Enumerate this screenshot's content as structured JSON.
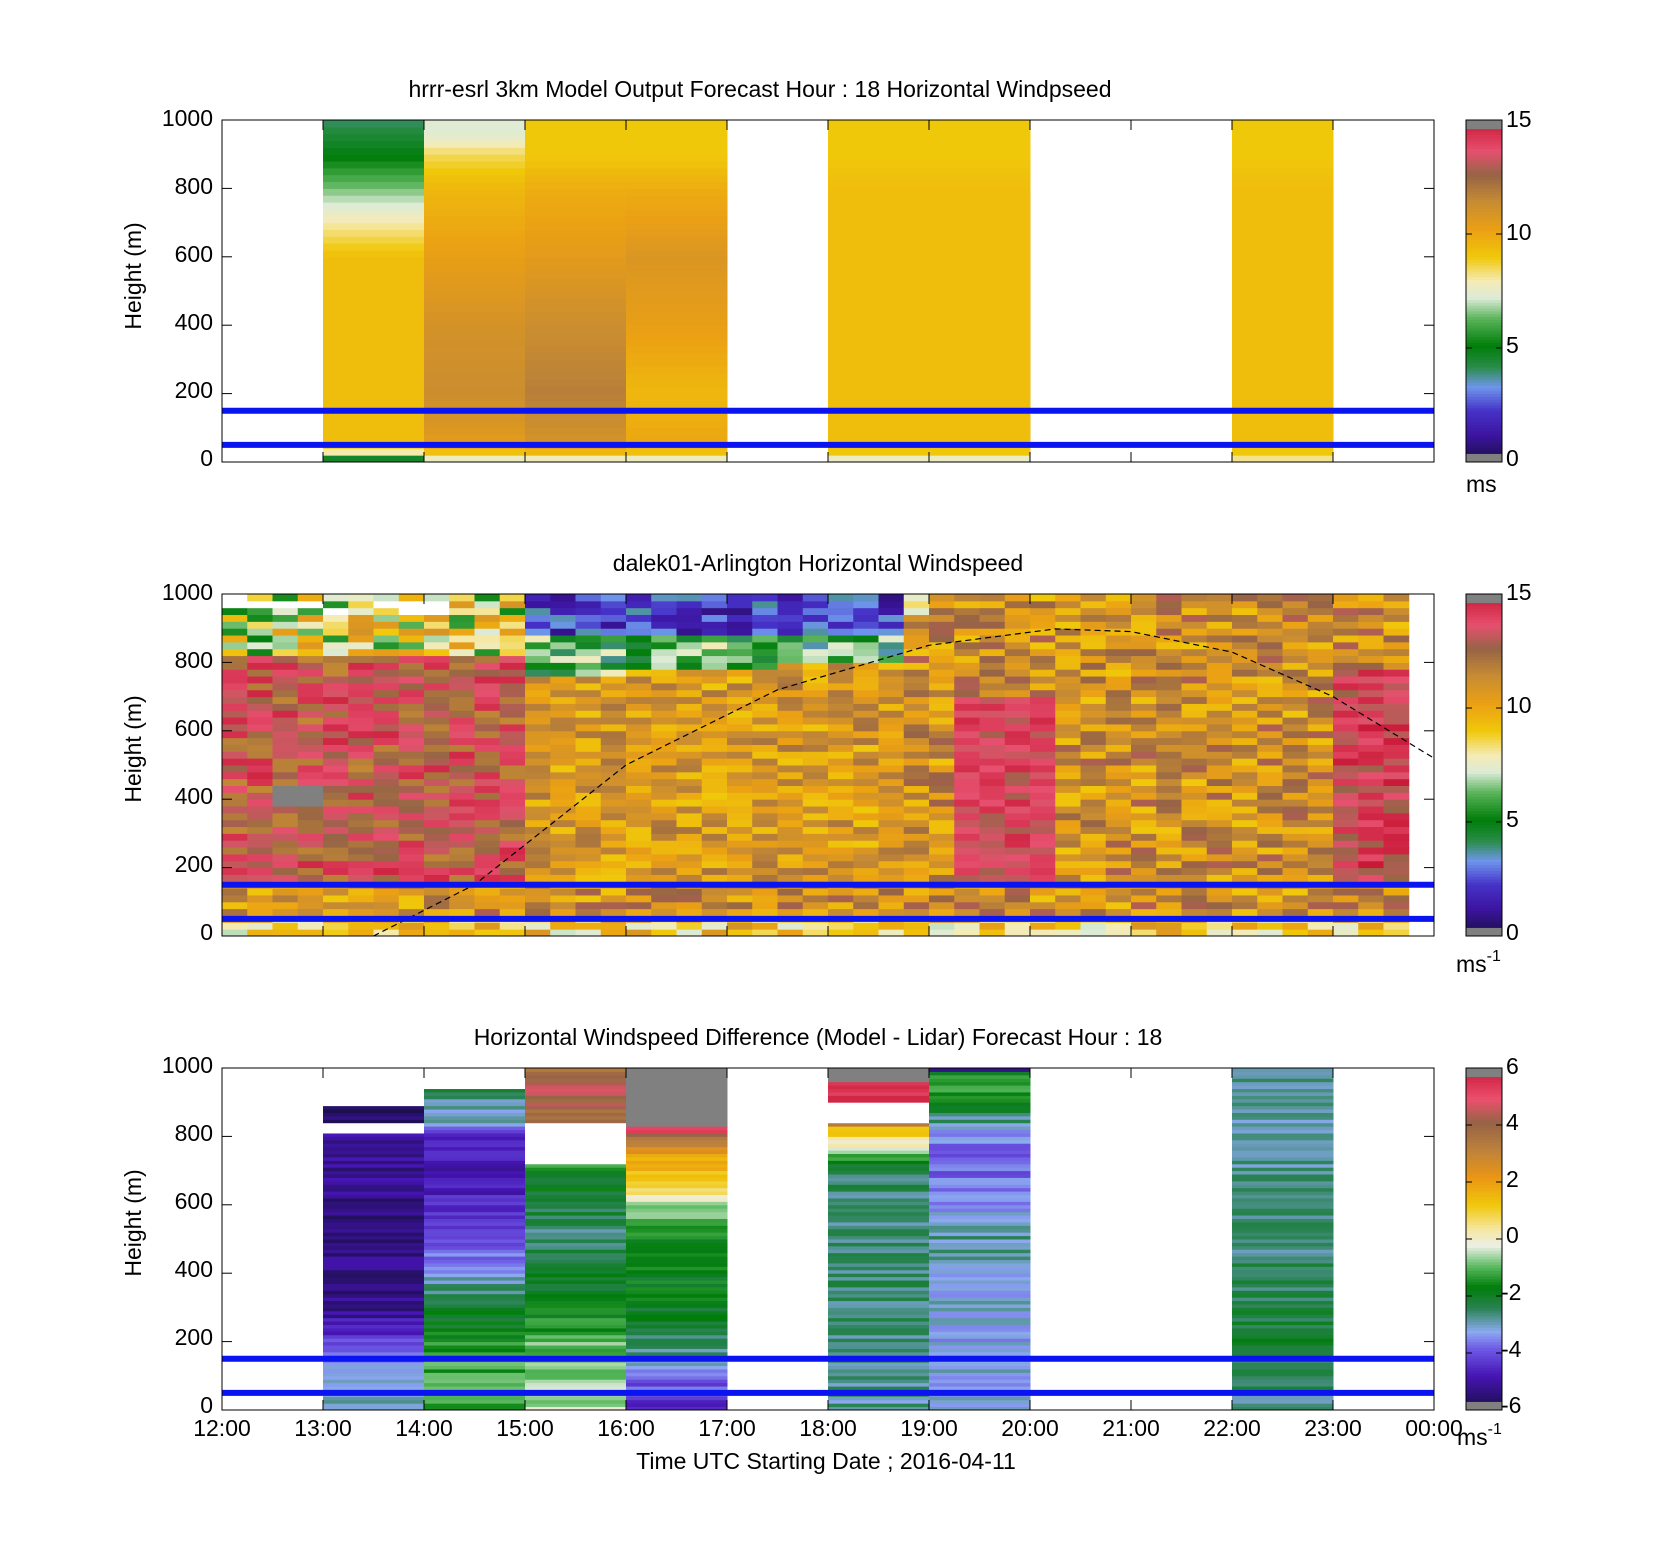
{
  "x_axis": {
    "ticks": [
      "12:00",
      "13:00",
      "14:00",
      "15:00",
      "16:00",
      "17:00",
      "18:00",
      "19:00",
      "20:00",
      "21:00",
      "22:00",
      "23:00",
      "00:00"
    ],
    "label": "Time UTC  Starting Date ; 2016-04-11"
  },
  "chart_data": [
    {
      "type": "heatmap",
      "title": "hrrr-esrl 3km Model Output   Forecast Hour : 18 Horizontal Windpseed",
      "ylabel": "Height (m)",
      "ylim": [
        0,
        1000
      ],
      "yticks": [
        "0",
        "200",
        "400",
        "600",
        "800",
        "1000"
      ],
      "colorbar": {
        "ticks": [
          "0",
          "5",
          "10",
          "15"
        ],
        "range": [
          0,
          15
        ],
        "unit": "ms",
        "unit_sup": ""
      },
      "reference_lines_m": [
        150,
        50
      ],
      "columns": [
        {
          "start_hour": 1,
          "profile": [
            [
              0,
              3
            ],
            [
              30,
              8
            ],
            [
              60,
              9.3
            ],
            [
              100,
              9.3
            ],
            [
              600,
              9.3
            ],
            [
              700,
              8
            ],
            [
              800,
              6.5
            ],
            [
              900,
              5
            ],
            [
              1000,
              4
            ]
          ]
        },
        {
          "start_hour": 2,
          "profile": [
            [
              0,
              7
            ],
            [
              30,
              9.2
            ],
            [
              60,
              10.5
            ],
            [
              200,
              11.3
            ],
            [
              400,
              11
            ],
            [
              600,
              10.3
            ],
            [
              800,
              9.5
            ],
            [
              900,
              8.5
            ],
            [
              960,
              7.3
            ]
          ]
        },
        {
          "start_hour": 3,
          "profile": [
            [
              0,
              7
            ],
            [
              30,
              9.5
            ],
            [
              60,
              11
            ],
            [
              200,
              11.8
            ],
            [
              400,
              11.3
            ],
            [
              600,
              10.5
            ],
            [
              800,
              9.8
            ],
            [
              900,
              9
            ]
          ]
        },
        {
          "start_hour": 4,
          "profile": [
            [
              0,
              7
            ],
            [
              30,
              9.2
            ],
            [
              60,
              10
            ],
            [
              200,
              9.5
            ],
            [
              400,
              10.3
            ],
            [
              600,
              10.8
            ],
            [
              800,
              9.8
            ],
            [
              900,
              9
            ]
          ]
        },
        {
          "start_hour": 6,
          "profile": [
            [
              0,
              7
            ],
            [
              30,
              9
            ],
            [
              60,
              9.3
            ],
            [
              400,
              9.3
            ],
            [
              800,
              9.3
            ],
            [
              900,
              9
            ]
          ]
        },
        {
          "start_hour": 7,
          "profile": [
            [
              0,
              7
            ],
            [
              30,
              9
            ],
            [
              60,
              9.3
            ],
            [
              400,
              9.3
            ],
            [
              800,
              9.3
            ],
            [
              900,
              9
            ]
          ]
        },
        {
          "start_hour": 10,
          "profile": [
            [
              0,
              7.8
            ],
            [
              30,
              9
            ],
            [
              60,
              9.3
            ],
            [
              400,
              9.3
            ],
            [
              800,
              9.3
            ],
            [
              900,
              9
            ]
          ]
        }
      ]
    },
    {
      "type": "heatmap",
      "title": "dalek01-Arlington  Horizontal Windspeed",
      "ylabel": "Height (m)",
      "ylim": [
        0,
        1000
      ],
      "yticks": [
        "0",
        "200",
        "400",
        "600",
        "800",
        "1000"
      ],
      "colorbar": {
        "ticks": [
          "0",
          "5",
          "10",
          "15"
        ],
        "range": [
          0,
          15
        ],
        "unit": "ms",
        "unit_sup": "-1"
      },
      "reference_lines_m": [
        150,
        50
      ],
      "dashed_curve": {
        "x_hours": [
          1.5,
          2.5,
          4,
          5.5,
          7,
          8.25,
          9,
          10,
          11,
          12
        ],
        "y_m": [
          0,
          150,
          500,
          720,
          850,
          898,
          890,
          830,
          700,
          520
        ]
      },
      "column_hours": 0.25,
      "time_range_hours": [
        0,
        11.75
      ],
      "regions": [
        {
          "name": "morning-jet",
          "hours": [
            0,
            3
          ],
          "core_speed": 13.5,
          "core_top_m": 820
        },
        {
          "name": "upper-slow-layer",
          "hours": [
            3,
            6.6
          ],
          "speed": 2,
          "bottom_m": 800
        },
        {
          "name": "evening-jet",
          "hours": [
            11,
            11.75
          ],
          "core_speed": 14,
          "core_top_m": 700
        }
      ]
    },
    {
      "type": "heatmap",
      "title": "Horizontal Windspeed Difference (Model - Lidar) Forecast Hour : 18",
      "ylabel": "Height (m)",
      "ylim": [
        0,
        1000
      ],
      "yticks": [
        "0",
        "200",
        "400",
        "600",
        "800",
        "1000"
      ],
      "colorbar": {
        "ticks": [
          "-6",
          "-4",
          "-2",
          "0",
          "2",
          "4",
          "6"
        ],
        "range": [
          -6,
          6
        ],
        "unit": "ms",
        "unit_sup": "-1"
      },
      "reference_lines_m": [
        150,
        50
      ],
      "columns": [
        {
          "start_hour": 1,
          "profile": [
            [
              0,
              -2.8
            ],
            [
              60,
              -2.8
            ],
            [
              180,
              -3.6
            ],
            [
              220,
              -4.4
            ],
            [
              300,
              -5.3
            ],
            [
              600,
              -5.3
            ],
            [
              800,
              -5.1
            ],
            [
              880,
              -5.8
            ]
          ],
          "gaps_m": [
            [
              810,
              840
            ]
          ]
        },
        {
          "start_hour": 2,
          "profile": [
            [
              0,
              -1.2
            ],
            [
              150,
              -1.2
            ],
            [
              300,
              -2.2
            ],
            [
              420,
              -3.3
            ],
            [
              500,
              -4
            ],
            [
              560,
              -4.6
            ],
            [
              700,
              -4.7
            ],
            [
              800,
              -4.5
            ],
            [
              850,
              -3
            ],
            [
              930,
              -2.5
            ]
          ]
        },
        {
          "start_hour": 3,
          "profile": [
            [
              0,
              -0.5
            ],
            [
              200,
              -1
            ],
            [
              300,
              -1.8
            ],
            [
              500,
              -2.6
            ],
            [
              700,
              -1.8
            ],
            [
              720,
              -0.5
            ],
            [
              840,
              3.8
            ],
            [
              950,
              4.5
            ],
            [
              1000,
              3
            ]
          ],
          "gaps_m": [
            [
              720,
              840
            ]
          ]
        },
        {
          "start_hour": 4,
          "profile": [
            [
              0,
              -4.5
            ],
            [
              40,
              -4.2
            ],
            [
              120,
              -3.5
            ],
            [
              180,
              -2.5
            ],
            [
              300,
              -1.9
            ],
            [
              500,
              -1.6
            ],
            [
              600,
              -0.6
            ],
            [
              650,
              1
            ],
            [
              720,
              1.5
            ],
            [
              790,
              3.2
            ],
            [
              820,
              5.2
            ]
          ],
          "gray_above_m": 830
        },
        {
          "start_hour": 6,
          "profile": [
            [
              0,
              -2.8
            ],
            [
              400,
              -2.5
            ],
            [
              600,
              -2.6
            ],
            [
              700,
              -2.5
            ],
            [
              750,
              -1
            ],
            [
              790,
              0.5
            ],
            [
              830,
              1.6
            ],
            [
              850,
              9
            ],
            [
              900,
              6
            ],
            [
              950,
              5.2
            ],
            [
              1000,
              6.5
            ]
          ],
          "gaps_m": [
            [
              850,
              900
            ]
          ],
          "gray_above_m": 960
        },
        {
          "start_hour": 7,
          "profile": [
            [
              0,
              -3.2
            ],
            [
              40,
              -3.2
            ],
            [
              300,
              -3.2
            ],
            [
              500,
              -2.8
            ],
            [
              600,
              -3.3
            ],
            [
              700,
              -3.9
            ],
            [
              800,
              -3.6
            ],
            [
              900,
              -1.8
            ],
            [
              980,
              -0.8
            ],
            [
              1000,
              -6.5
            ]
          ]
        },
        {
          "start_hour": 10,
          "profile": [
            [
              0,
              -2.8
            ],
            [
              200,
              -2.1
            ],
            [
              500,
              -2.6
            ],
            [
              800,
              -2.9
            ],
            [
              1000,
              -2.8
            ]
          ]
        }
      ]
    }
  ]
}
